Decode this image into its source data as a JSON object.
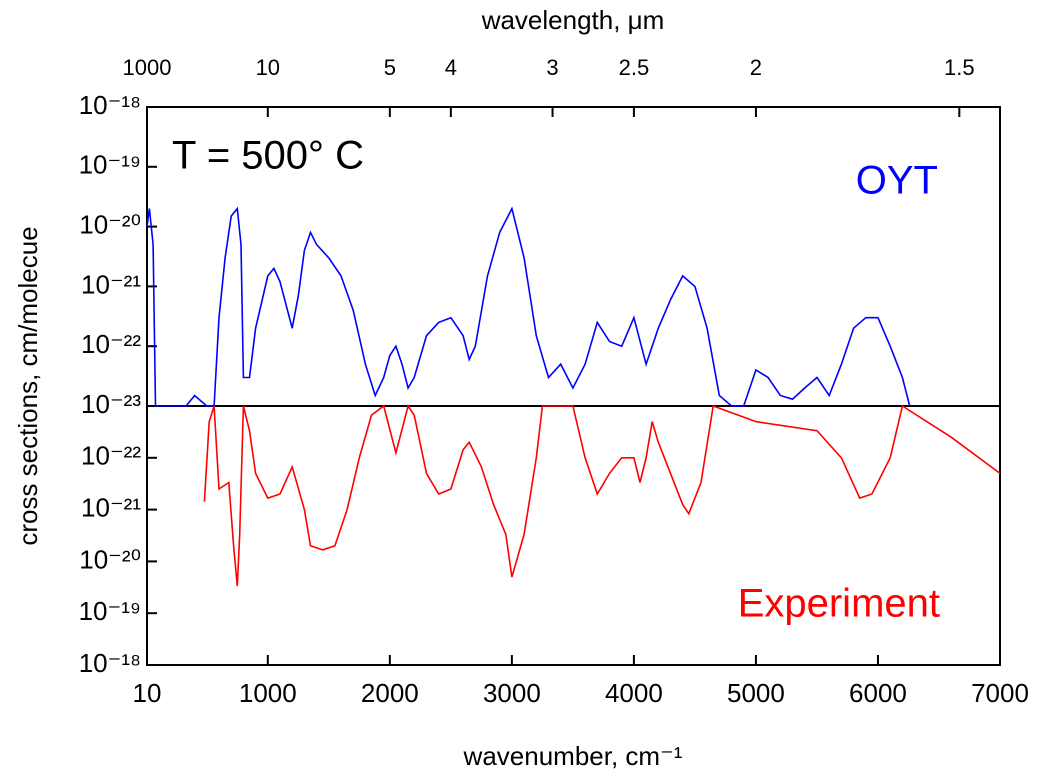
{
  "chart_data": {
    "type": "line",
    "xlabel": "wavenumber, cm⁻¹",
    "x2label": "wavelength, μm",
    "ylabel": "cross sections, cm/molecue",
    "annotation": "T = 500° C",
    "xlim": [
      10,
      7000
    ],
    "xticks": [
      10,
      1000,
      2000,
      3000,
      4000,
      5000,
      6000,
      7000
    ],
    "x2ticks": [
      1000,
      10,
      5,
      4,
      3,
      2.5,
      2,
      1.5
    ],
    "x2scale": "reciprocal",
    "yscale": "log",
    "series": [
      {
        "name": "OYT",
        "color": "#0000ff",
        "ylim": [
          1e-23,
          1e-18
        ],
        "yticks": [
          {
            "value": 1e-18,
            "label": "10⁻¹⁸"
          },
          {
            "value": 1e-19,
            "label": "10⁻¹⁹"
          },
          {
            "value": 1e-20,
            "label": "10⁻²⁰"
          },
          {
            "value": 1e-21,
            "label": "10⁻²¹"
          },
          {
            "value": 1e-22,
            "label": "10⁻²²"
          },
          {
            "value": 1e-23,
            "label": "10⁻²³"
          }
        ],
        "x": [
          10,
          30,
          60,
          80,
          330,
          400,
          500,
          560,
          600,
          650,
          700,
          750,
          780,
          800,
          850,
          900,
          1000,
          1050,
          1100,
          1200,
          1250,
          1300,
          1350,
          1400,
          1500,
          1600,
          1700,
          1800,
          1880,
          1950,
          2000,
          2050,
          2100,
          2150,
          2200,
          2300,
          2400,
          2500,
          2600,
          2650,
          2700,
          2800,
          2900,
          3000,
          3100,
          3200,
          3300,
          3400,
          3500,
          3600,
          3700,
          3800,
          3900,
          4000,
          4100,
          4200,
          4300,
          4400,
          4500,
          4600,
          4700,
          4800,
          4900,
          5000,
          5100,
          5200,
          5300,
          5400,
          5500,
          5600,
          5700,
          5800,
          5900,
          6000,
          6100,
          6200,
          6260
        ],
        "values": [
          1e-20,
          2e-20,
          5e-21,
          1e-23,
          1e-23,
          1.5e-23,
          1e-23,
          1e-23,
          3e-22,
          3e-21,
          1.5e-20,
          2e-20,
          5e-21,
          3e-23,
          3e-23,
          2e-22,
          1.5e-21,
          2e-21,
          1.2e-21,
          2e-22,
          7e-22,
          4e-21,
          8e-21,
          5e-21,
          3e-21,
          1.5e-21,
          4e-22,
          5e-23,
          1.5e-23,
          3e-23,
          7e-23,
          1e-22,
          5e-23,
          2e-23,
          3e-23,
          1.5e-22,
          2.5e-22,
          3e-22,
          1.5e-22,
          6e-23,
          1e-22,
          1.5e-21,
          8e-21,
          2e-20,
          3e-21,
          1.5e-22,
          3e-23,
          5e-23,
          2e-23,
          5e-23,
          2.5e-22,
          1.2e-22,
          1e-22,
          3e-22,
          5e-23,
          2e-22,
          6e-22,
          1.5e-21,
          1e-21,
          2e-22,
          1.5e-23,
          1e-23,
          1e-23,
          4e-23,
          3e-23,
          1.5e-23,
          1.3e-23,
          2e-23,
          3e-23,
          1.5e-23,
          5e-23,
          2e-22,
          3e-22,
          3e-22,
          1e-22,
          3e-23,
          1e-23
        ]
      },
      {
        "name": "Experiment",
        "color": "#ff0000",
        "ylim": [
          1e-18,
          1e-23
        ],
        "yticks": [
          {
            "value": 1e-22,
            "label": "10⁻²²"
          },
          {
            "value": 1e-21,
            "label": "10⁻²¹"
          },
          {
            "value": 1e-20,
            "label": "10⁻²⁰"
          },
          {
            "value": 1e-19,
            "label": "10⁻¹⁹"
          },
          {
            "value": 1e-18,
            "label": "10⁻¹⁸"
          }
        ],
        "x": [
          480,
          520,
          560,
          600,
          680,
          720,
          750,
          770,
          800,
          850,
          900,
          1000,
          1100,
          1200,
          1300,
          1350,
          1450,
          1550,
          1650,
          1750,
          1850,
          1950,
          2050,
          2150,
          2200,
          2300,
          2400,
          2500,
          2600,
          2650,
          2750,
          2850,
          2950,
          3000,
          3100,
          3200,
          3250,
          3500,
          3600,
          3700,
          3800,
          3900,
          4000,
          4050,
          4100,
          4150,
          4200,
          4300,
          4400,
          4450,
          4550,
          4650,
          5000,
          5500,
          5700,
          5850,
          5950,
          6100,
          6200,
          6600,
          7000
        ],
        "values": [
          7e-22,
          2e-23,
          1e-23,
          4e-22,
          3e-22,
          5e-21,
          3e-20,
          3e-21,
          1e-23,
          3e-23,
          2e-22,
          6e-22,
          5e-22,
          1.5e-22,
          1e-21,
          5e-21,
          6e-21,
          5e-21,
          1e-21,
          1e-22,
          1.5e-23,
          1e-23,
          8e-23,
          1e-23,
          1.5e-23,
          2e-22,
          5e-22,
          4e-22,
          7e-23,
          5e-23,
          1.5e-22,
          8e-22,
          3e-21,
          2e-20,
          3e-21,
          1e-22,
          1e-23,
          1e-23,
          1e-22,
          5e-22,
          2e-22,
          1e-22,
          1e-22,
          3e-22,
          1e-22,
          2e-23,
          5e-23,
          2e-22,
          8e-22,
          1.2e-21,
          3e-22,
          1e-23,
          2e-23,
          3e-23,
          1e-22,
          6e-22,
          5e-22,
          1e-22,
          1e-23,
          4e-23,
          2e-22
        ]
      }
    ]
  }
}
